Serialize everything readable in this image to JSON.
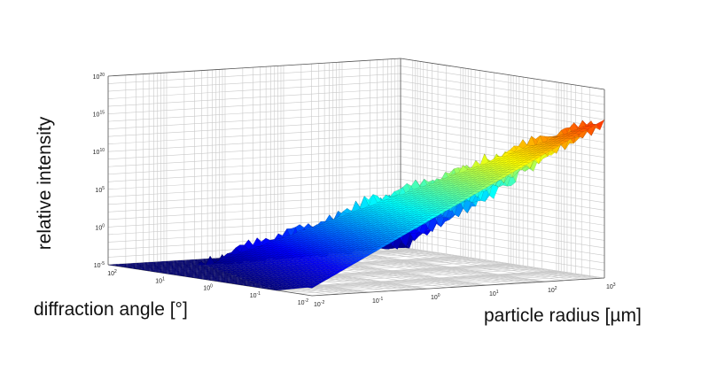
{
  "chart_data": {
    "type": "surface",
    "title": "",
    "xlabel": "diffraction angle [°]",
    "ylabel": "particle radius [µm]",
    "zlabel": "relative intensity",
    "x_scale": "log",
    "y_scale": "log",
    "z_scale": "log",
    "x_ticks": [
      "10^-2",
      "10^-1",
      "10^0",
      "10^1",
      "10^2"
    ],
    "y_ticks": [
      "10^-2",
      "10^-1",
      "10^0",
      "10^1",
      "10^2",
      "10^3"
    ],
    "z_ticks": [
      "10^-5",
      "10^0",
      "10^5",
      "10^10",
      "10^15",
      "10^20"
    ],
    "x_range": [
      0.01,
      180
    ],
    "y_range": [
      0.01,
      1000
    ],
    "z_range": [
      1e-05,
      1e+20
    ],
    "grid": true,
    "colormap": "jet",
    "peak": {
      "x": 0.01,
      "y": 1000,
      "z": 1e+19
    }
  }
}
